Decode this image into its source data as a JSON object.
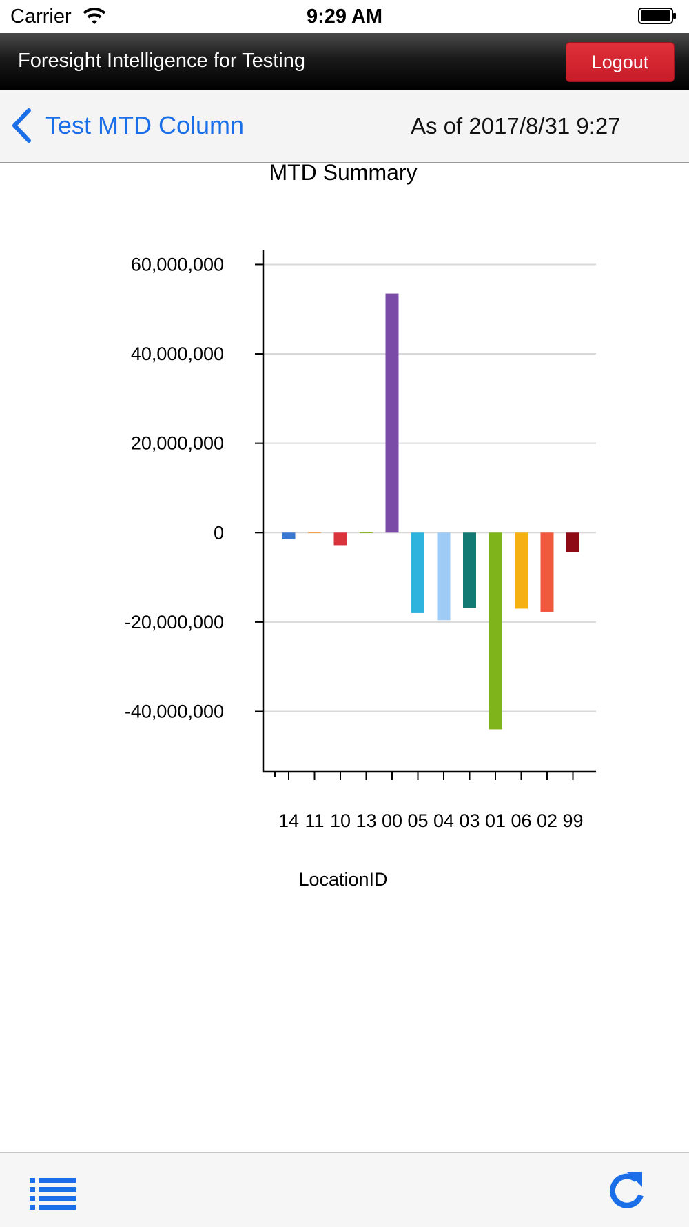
{
  "status_bar": {
    "carrier": "Carrier",
    "time": "9:29 AM"
  },
  "app_header": {
    "title": "Foresight Intelligence for Testing",
    "logout_label": "Logout"
  },
  "nav_bar": {
    "back_title": "Test MTD Column",
    "as_of": "As of 2017/8/31 9:27"
  },
  "colors": {
    "accent": "#1a6fe8",
    "logout": "#d42430"
  },
  "chart_data": {
    "type": "bar",
    "title": "MTD Summary",
    "xlabel": "LocationID",
    "ylabel": "",
    "ylim": [
      -53500000,
      63000000
    ],
    "yticks": [
      60000000,
      40000000,
      20000000,
      0,
      -20000000,
      -40000000
    ],
    "ytick_labels": [
      "60,000,000",
      "40,000,000",
      "20,000,000",
      "0",
      "-20,000,000",
      "-40,000,000"
    ],
    "grid": true,
    "categories": [
      "14",
      "11",
      "10",
      "13",
      "00",
      "05",
      "04",
      "03",
      "01",
      "06",
      "02",
      "99"
    ],
    "values": [
      -1500000,
      -200000,
      -2800000,
      -150000,
      53500000,
      -18000000,
      -19600000,
      -16800000,
      -44000000,
      -17000000,
      -17800000,
      -4300000
    ],
    "colors": [
      "#3a78d2",
      "#f3a04a",
      "#d9333c",
      "#8bb52a",
      "#7a4ca8",
      "#2eb2de",
      "#9ecbf5",
      "#127a73",
      "#7fb41a",
      "#f5b014",
      "#f05a3c",
      "#8e0b15"
    ]
  }
}
